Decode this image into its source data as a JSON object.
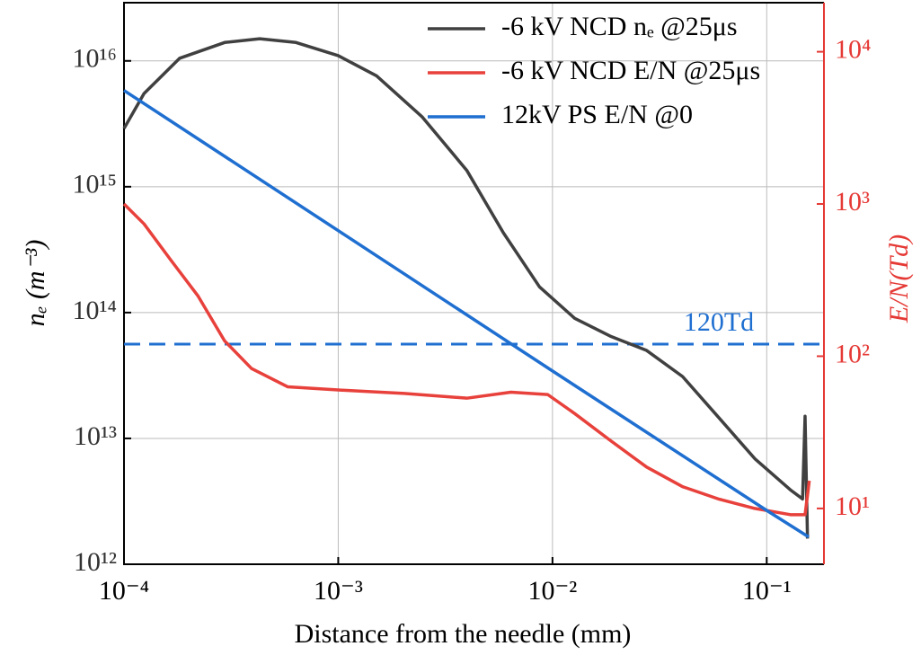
{
  "chart_data": {
    "type": "line",
    "xlabel": "Distance from the needle (mm)",
    "ylabel": "nₑ (m⁻³)",
    "y2label": "E/N(Td)",
    "xscale": "log",
    "yscale": "log",
    "y2scale": "log",
    "grid": true,
    "legend_loc": "upper right",
    "xlim": [
      0.0001,
      0.185
    ],
    "xticks": [
      {
        "value": 0.0001,
        "label": "10⁻⁴"
      },
      {
        "value": 0.001,
        "label": "10⁻³"
      },
      {
        "value": 0.01,
        "label": "10⁻²"
      },
      {
        "value": 0.1,
        "label": "10⁻¹"
      }
    ],
    "ylim": [
      1000000000000.0,
      2.9e+16
    ],
    "yticks": [
      {
        "value": 1000000000000.0,
        "label": "10¹²"
      },
      {
        "value": 10000000000000.0,
        "label": "10¹³"
      },
      {
        "value": 100000000000000.0,
        "label": "10¹⁴"
      },
      {
        "value": 1000000000000000.0,
        "label": "10¹⁵"
      },
      {
        "value": 1e+16,
        "label": "10¹⁶"
      }
    ],
    "y2lim": [
      4.3,
      21000
    ],
    "y2ticks": [
      {
        "value": 10,
        "label": "10¹"
      },
      {
        "value": 100,
        "label": "10²"
      },
      {
        "value": 1000,
        "label": "10³"
      },
      {
        "value": 10000,
        "label": "10⁴"
      }
    ],
    "y2color": "#e53935",
    "series": [
      {
        "name": "-6 kV NCD nₑ @25μs",
        "color": "#404040",
        "axis": "y",
        "x": [
          0.0001,
          0.000124,
          0.000182,
          0.000295,
          0.00043,
          0.000635,
          0.001,
          0.00151,
          0.00246,
          0.00398,
          0.0059,
          0.0087,
          0.0127,
          0.0186,
          0.0275,
          0.0405,
          0.06,
          0.088,
          0.129,
          0.147,
          0.151,
          0.155
        ],
        "values": [
          2900000000000000.0,
          5500000000000000.0,
          1.05e+16,
          1.4e+16,
          1.5e+16,
          1.4e+16,
          1.1e+16,
          7600000000000000.0,
          3600000000000000.0,
          1350000000000000.0,
          430000000000000.0,
          160000000000000.0,
          90000000000000.0,
          65000000000000.0,
          50000000000000.0,
          31000000000000.0,
          14500000000000.0,
          6900000000000.0,
          3900000000000.0,
          3300000000000.0,
          15000000000000.0,
          1600000000000.0
        ]
      },
      {
        "name": "-6 kV NCD E/N @25μs",
        "color": "#e8413c",
        "axis": "y2",
        "x": [
          0.0001,
          0.000124,
          0.000165,
          0.000221,
          0.000295,
          0.000394,
          0.00058,
          0.001,
          0.00203,
          0.00398,
          0.0064,
          0.0095,
          0.0127,
          0.0186,
          0.0275,
          0.0405,
          0.06,
          0.088,
          0.129,
          0.151,
          0.158
        ],
        "values": [
          1000,
          740,
          430,
          250,
          126,
          83,
          63,
          60,
          57,
          53,
          58,
          56,
          42,
          28,
          18.7,
          13.9,
          11.5,
          10,
          9.1,
          9.1,
          15.2
        ]
      },
      {
        "name": "12kV PS E/N @0",
        "color": "#1f6fd1",
        "axis": "y2",
        "x": [
          0.0001,
          0.001,
          0.01,
          0.1,
          0.157
        ],
        "values": [
          5570,
          668,
          80,
          9.7,
          6.5
        ]
      }
    ],
    "reference_line": {
      "value": 120,
      "axis": "y2",
      "label": "120Td",
      "color": "#1f6fd1"
    }
  }
}
